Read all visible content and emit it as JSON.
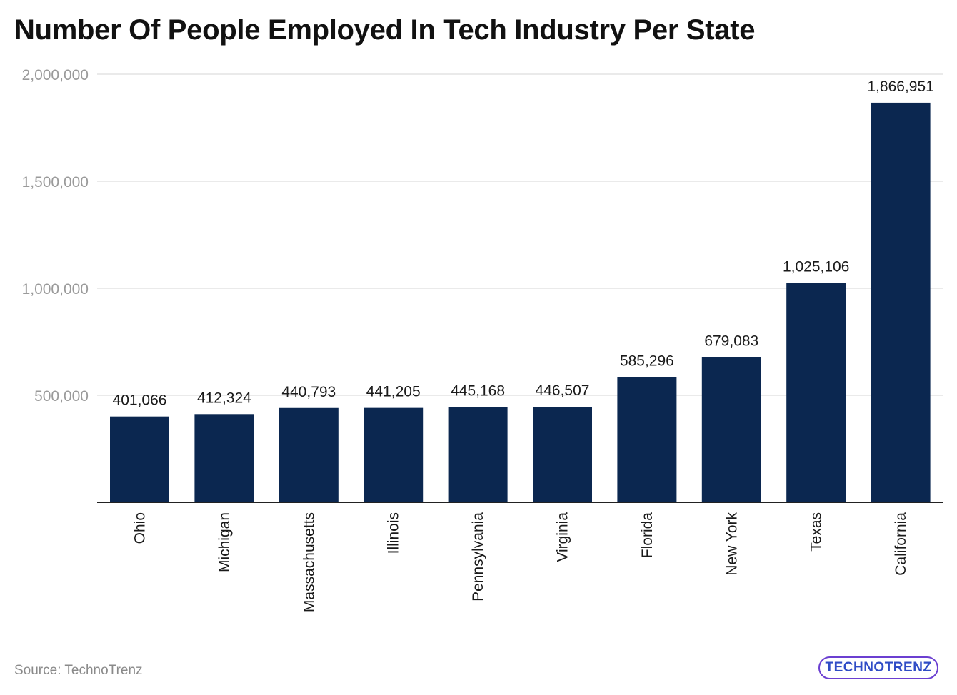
{
  "chart_data": {
    "type": "bar",
    "title": "Number Of People Employed In Tech Industry Per State",
    "xlabel": "",
    "ylabel": "",
    "categories": [
      "Ohio",
      "Michigan",
      "Massachusetts",
      "Illinois",
      "Pennsylvania",
      "Virginia",
      "Florida",
      "New York",
      "Texas",
      "California"
    ],
    "values": [
      401066,
      412324,
      440793,
      441205,
      445168,
      446507,
      585296,
      679083,
      1025106,
      1866951
    ],
    "value_labels": [
      "401,066",
      "412,324",
      "440,793",
      "441,205",
      "445,168",
      "446,507",
      "585,296",
      "679,083",
      "1,025,106",
      "1,866,951"
    ],
    "ylim": [
      0,
      2000000
    ],
    "yticks": [
      500000,
      1000000,
      1500000,
      2000000
    ],
    "ytick_labels": [
      "500,000",
      "1,000,000",
      "1,500,000",
      "2,000,000"
    ],
    "grid": true,
    "bar_color": "#0b2750"
  },
  "source": "Source: TechnoTrenz",
  "logo_text": "TECHNOTRENZ"
}
